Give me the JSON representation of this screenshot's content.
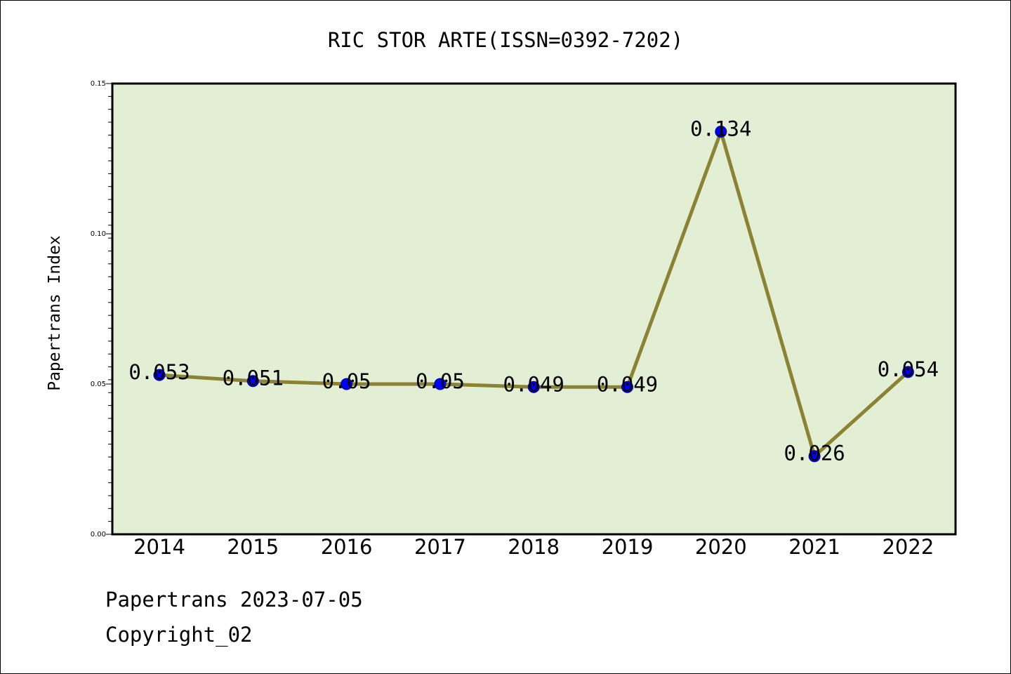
{
  "chart_data": {
    "type": "line",
    "title": "RIC STOR ARTE(ISSN=0392-7202)",
    "ylabel": "Papertrans Index",
    "xlabel": "",
    "categories": [
      "2014",
      "2015",
      "2016",
      "2017",
      "2018",
      "2019",
      "2020",
      "2021",
      "2022"
    ],
    "values": [
      0.053,
      0.051,
      0.05,
      0.05,
      0.049,
      0.049,
      0.134,
      0.026,
      0.054
    ],
    "data_labels": [
      "0.053",
      "0.051",
      "0.05",
      "0.05",
      "0.049",
      "0.049",
      "0.134",
      "0.026",
      "0.054"
    ],
    "ylim": [
      0,
      0.15
    ],
    "yticks": [
      "0.00",
      "0.05",
      "0.10",
      "0.15"
    ],
    "grid": false,
    "colors": {
      "plot_background": "#e2efd4",
      "line": "#8b8233",
      "marker": "#0000ff"
    }
  },
  "footer": {
    "line1": "Papertrans 2023-07-05",
    "line2": "Copyright_02"
  }
}
